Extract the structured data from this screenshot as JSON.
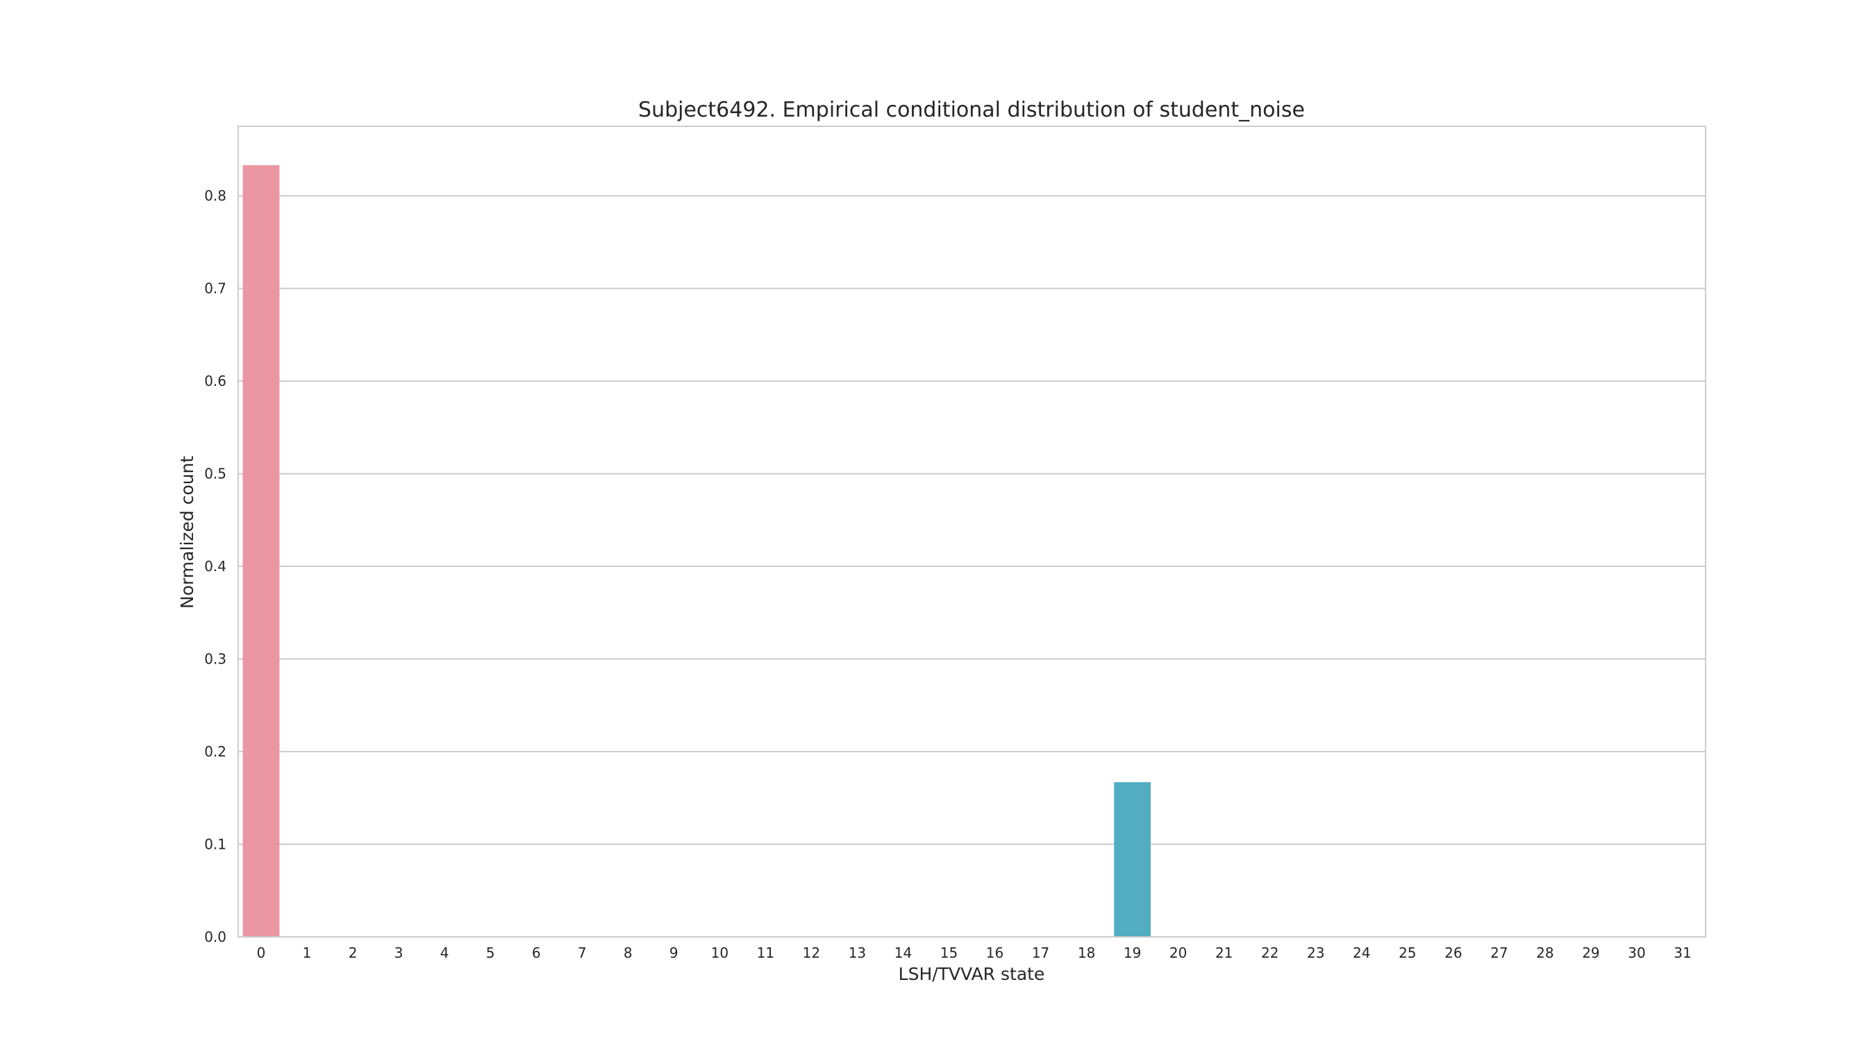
{
  "chart_data": {
    "type": "bar",
    "title": "Subject6492. Empirical conditional distribution of student_noise",
    "xlabel": "LSH/TVVAR state",
    "ylabel": "Normalized count",
    "categories": [
      "0",
      "1",
      "2",
      "3",
      "4",
      "5",
      "6",
      "7",
      "8",
      "9",
      "10",
      "11",
      "12",
      "13",
      "14",
      "15",
      "16",
      "17",
      "18",
      "19",
      "20",
      "21",
      "22",
      "23",
      "24",
      "25",
      "26",
      "27",
      "28",
      "29",
      "30",
      "31"
    ],
    "values": [
      0.833,
      0,
      0,
      0,
      0,
      0,
      0,
      0,
      0,
      0,
      0,
      0,
      0,
      0,
      0,
      0,
      0,
      0,
      0,
      0.167,
      0,
      0,
      0,
      0,
      0,
      0,
      0,
      0,
      0,
      0,
      0,
      0
    ],
    "ylim": [
      0,
      0.875
    ],
    "yticks": [
      0.0,
      0.1,
      0.2,
      0.3,
      0.4,
      0.5,
      0.6,
      0.7,
      0.8
    ],
    "ytick_labels": [
      "0.0",
      "0.1",
      "0.2",
      "0.3",
      "0.4",
      "0.5",
      "0.6",
      "0.7",
      "0.8"
    ],
    "grid": "horizontal",
    "colors": {
      "bar_0": "#ea96a3",
      "bar_19": "#52adc2",
      "grid": "#cccccc",
      "frame": "#cccccc",
      "text": "#262626"
    }
  }
}
